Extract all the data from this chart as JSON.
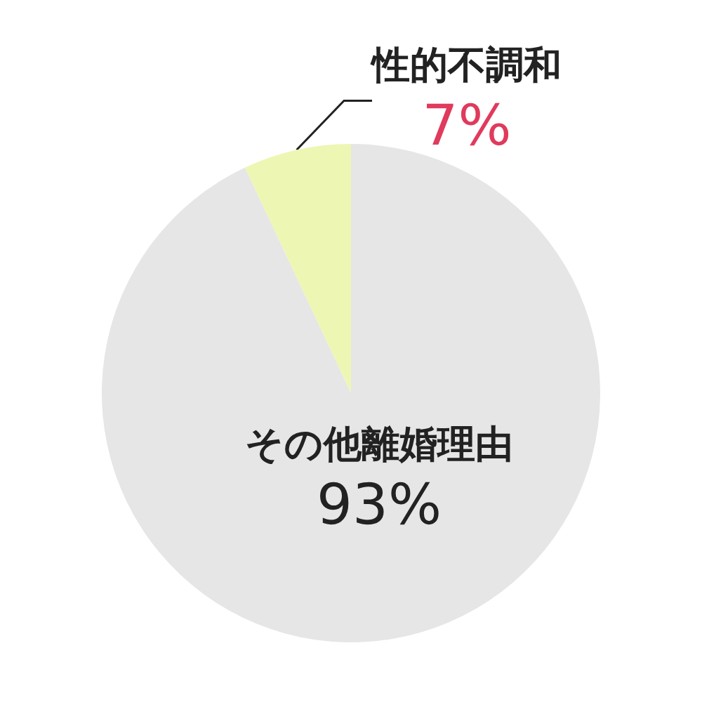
{
  "chart_data": {
    "type": "pie",
    "categories": [
      "性的不調和",
      "その他離婚理由"
    ],
    "values": [
      7,
      93
    ],
    "value_labels": [
      "7%",
      "93%"
    ],
    "colors": [
      "#eef6b4",
      "#e6e6e6"
    ],
    "legend": false
  }
}
